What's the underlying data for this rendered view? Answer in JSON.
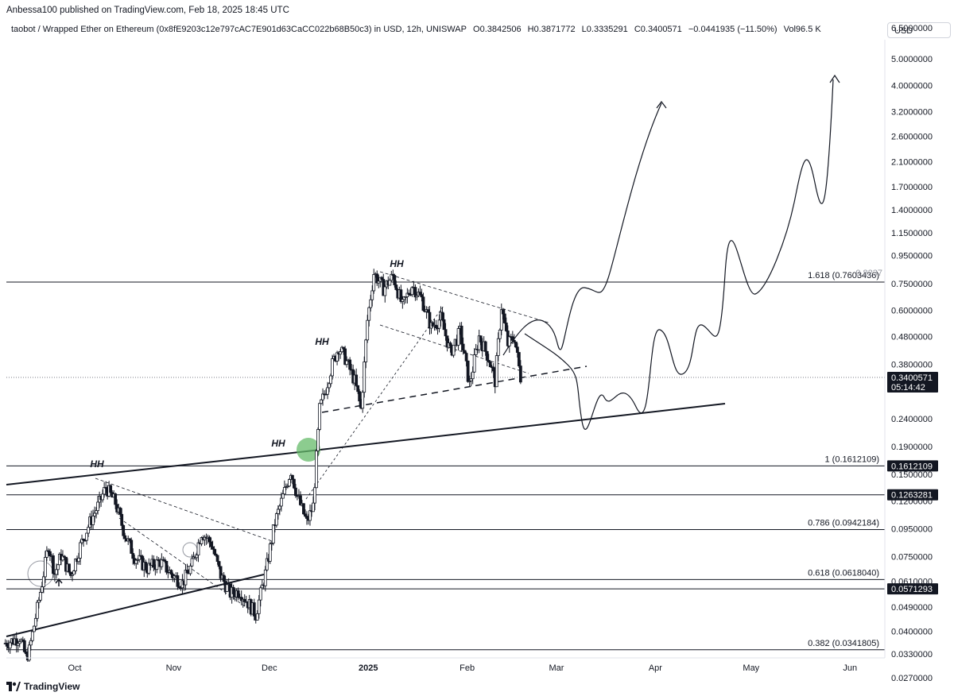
{
  "publisher_line": "Anbessa100 published on TradingView.com, Feb 18, 2025 18:45 UTC",
  "header": {
    "symbol": "taobot / Wrapped Ether on Ethereum (0x8fE9203c12e797cAC7E901d63CaCC022b68B50c3) in USD, 12h, UNISWAP",
    "open": "O0.3842506",
    "high": "H0.3871772",
    "low": "L0.3335291",
    "close": "C0.3400571",
    "change": "−0.0441935 (−11.50%)",
    "volume": "Vol96.5 K"
  },
  "currency_button": "USD",
  "brand": "TradingView",
  "colors": {
    "candle": "#131722",
    "grid_line": "#131722",
    "highlight_circle": "#66bb6a",
    "axis_text": "#131722",
    "label_box": "#131722"
  },
  "chart_data": {
    "type": "candlestick",
    "scale": "log",
    "ylim": [
      0.026,
      7.0
    ],
    "y_ticks": [
      "6.5000000",
      "5.0000000",
      "4.0000000",
      "3.2000000",
      "2.6000000",
      "2.1000000",
      "1.7000000",
      "1.4000000",
      "1.1500000",
      "0.9500000",
      "0.7500000",
      "0.6000000",
      "0.4800000",
      "0.3800000",
      "0.2400000",
      "0.1900000",
      "0.1500000",
      "0.1200000",
      "0.0950000",
      "0.0750000",
      "0.0610000",
      "0.0490000",
      "0.0400000",
      "0.0330000",
      "0.0270000"
    ],
    "y_tick_values": [
      6.5,
      5.0,
      4.0,
      3.2,
      2.6,
      2.1,
      1.7,
      1.4,
      1.15,
      0.95,
      0.75,
      0.6,
      0.48,
      0.38,
      0.24,
      0.19,
      0.15,
      0.12,
      0.095,
      0.075,
      0.061,
      0.049,
      0.04,
      0.033,
      0.027
    ],
    "x_ticks": [
      {
        "label": "Oct",
        "date": "2024-10-01",
        "bold": false
      },
      {
        "label": "Nov",
        "date": "2024-11-01",
        "bold": false
      },
      {
        "label": "Dec",
        "date": "2024-12-01",
        "bold": false
      },
      {
        "label": "2025",
        "date": "2025-01-01",
        "bold": true
      },
      {
        "label": "Feb",
        "date": "2025-02-01",
        "bold": false
      },
      {
        "label": "Mar",
        "date": "2025-03-01",
        "bold": false
      },
      {
        "label": "Apr",
        "date": "2025-04-01",
        "bold": false
      },
      {
        "label": "May",
        "date": "2025-05-01",
        "bold": false
      },
      {
        "label": "Jun",
        "date": "2025-06-01",
        "bold": false
      }
    ],
    "price_path": [
      [
        "2024-09-09",
        0.036
      ],
      [
        "2024-09-12",
        0.037
      ],
      [
        "2024-09-14",
        0.038
      ],
      [
        "2024-09-16",
        0.032
      ],
      [
        "2024-09-17",
        0.034
      ],
      [
        "2024-09-19",
        0.045
      ],
      [
        "2024-09-21",
        0.06
      ],
      [
        "2024-09-23",
        0.083
      ],
      [
        "2024-09-25",
        0.065
      ],
      [
        "2024-09-27",
        0.076
      ],
      [
        "2024-09-30",
        0.064
      ],
      [
        "2024-10-03",
        0.082
      ],
      [
        "2024-10-06",
        0.1
      ],
      [
        "2024-10-09",
        0.118
      ],
      [
        "2024-10-11",
        0.135
      ],
      [
        "2024-10-14",
        0.118
      ],
      [
        "2024-10-17",
        0.09
      ],
      [
        "2024-10-20",
        0.075
      ],
      [
        "2024-10-24",
        0.068
      ],
      [
        "2024-10-28",
        0.072
      ],
      [
        "2024-11-01",
        0.064
      ],
      [
        "2024-11-04",
        0.06
      ],
      [
        "2024-11-07",
        0.07
      ],
      [
        "2024-11-10",
        0.092
      ],
      [
        "2024-11-13",
        0.084
      ],
      [
        "2024-11-16",
        0.064
      ],
      [
        "2024-11-19",
        0.055
      ],
      [
        "2024-11-22",
        0.056
      ],
      [
        "2024-11-25",
        0.05
      ],
      [
        "2024-11-27",
        0.046
      ],
      [
        "2024-11-30",
        0.065
      ],
      [
        "2024-12-03",
        0.1
      ],
      [
        "2024-12-06",
        0.13
      ],
      [
        "2024-12-08",
        0.155
      ],
      [
        "2024-12-10",
        0.125
      ],
      [
        "2024-12-13",
        0.1
      ],
      [
        "2024-12-15",
        0.115
      ],
      [
        "2024-12-17",
        0.26
      ],
      [
        "2024-12-19",
        0.31
      ],
      [
        "2024-12-21",
        0.38
      ],
      [
        "2024-12-23",
        0.44
      ],
      [
        "2024-12-25",
        0.4
      ],
      [
        "2024-12-28",
        0.33
      ],
      [
        "2024-12-30",
        0.26
      ],
      [
        "2025-01-01",
        0.55
      ],
      [
        "2025-01-03",
        0.82
      ],
      [
        "2025-01-06",
        0.72
      ],
      [
        "2025-01-09",
        0.8
      ],
      [
        "2025-01-12",
        0.62
      ],
      [
        "2025-01-15",
        0.74
      ],
      [
        "2025-01-18",
        0.66
      ],
      [
        "2025-01-21",
        0.52
      ],
      [
        "2025-01-24",
        0.56
      ],
      [
        "2025-01-27",
        0.42
      ],
      [
        "2025-01-30",
        0.5
      ],
      [
        "2025-02-02",
        0.32
      ],
      [
        "2025-02-05",
        0.48
      ],
      [
        "2025-02-08",
        0.4
      ],
      [
        "2025-02-10",
        0.33
      ],
      [
        "2025-02-12",
        0.62
      ],
      [
        "2025-02-14",
        0.45
      ],
      [
        "2025-02-16",
        0.48
      ],
      [
        "2025-02-18",
        0.34
      ]
    ],
    "horizontal_levels": [
      {
        "value": 0.7603436,
        "label": "1.618 (0.7603436)"
      },
      {
        "value": 0.1612109,
        "label": "1 (0.1612109)"
      },
      {
        "value": 0.1263281,
        "label": ""
      },
      {
        "value": 0.0942184,
        "label": "0.786 (0.0942184)"
      },
      {
        "value": 0.061804,
        "label": "0.618 (0.0618040)"
      },
      {
        "value": 0.0571293,
        "label": ""
      },
      {
        "value": 0.0341805,
        "label": "0.382 (0.0341805)"
      }
    ],
    "price_label_boxes": [
      {
        "value": 0.3400571,
        "label": "0.3400571",
        "sub": "05:14:42"
      },
      {
        "value": 0.1612109,
        "label": "0.1612109",
        "sub": ""
      },
      {
        "value": 0.1263281,
        "label": "0.1263281",
        "sub": ""
      },
      {
        "value": 0.0571293,
        "label": "0.0571293",
        "sub": ""
      }
    ],
    "faint_price_label": {
      "value": 0.8237,
      "label": "0.8237"
    },
    "annotations": [
      "HH",
      "HH",
      "HH",
      "HH"
    ],
    "highlight_circle_value": 0.165
  }
}
